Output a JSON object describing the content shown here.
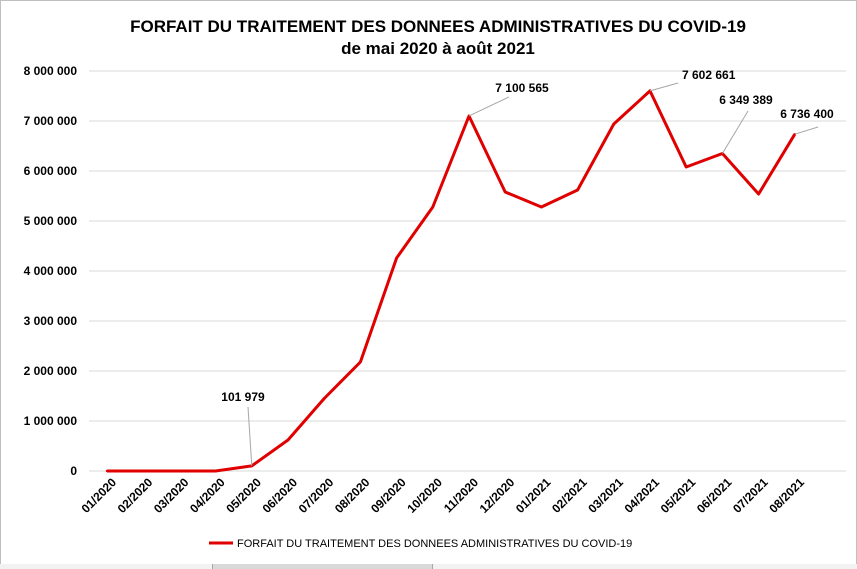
{
  "chart_data": {
    "type": "line",
    "title": "FORFAIT DU TRAITEMENT DES DONNEES ADMINISTRATIVES DU COVID-19",
    "subtitle": "de mai 2020 à août 2021",
    "categories": [
      "01/2020",
      "02/2020",
      "03/2020",
      "04/2020",
      "05/2020",
      "06/2020",
      "07/2020",
      "08/2020",
      "09/2020",
      "10/2020",
      "11/2020",
      "12/2020",
      "01/2021",
      "02/2021",
      "03/2021",
      "04/2021",
      "05/2021",
      "06/2021",
      "07/2021",
      "08/2021"
    ],
    "series": [
      {
        "name": "FORFAIT DU TRAITEMENT DES DONNEES ADMINISTRATIVES DU COVID-19",
        "color": "#e00000",
        "values": [
          0,
          0,
          0,
          0,
          101979,
          620000,
          1450000,
          2180000,
          4260000,
          5280000,
          7100565,
          5580000,
          5280000,
          5620000,
          6940000,
          7602661,
          6080000,
          6349389,
          5540000,
          6736400
        ]
      }
    ],
    "yticks": [
      "0",
      "1 000 000",
      "2 000 000",
      "3 000 000",
      "4 000 000",
      "5 000 000",
      "6 000 000",
      "7 000 000",
      "8 000 000"
    ],
    "ylim": [
      0,
      8000000
    ],
    "grid": true,
    "legend_position": "bottom",
    "annotations": [
      {
        "index": 4,
        "text": "101 979"
      },
      {
        "index": 10,
        "text": "7 100 565"
      },
      {
        "index": 15,
        "text": "7 602 661"
      },
      {
        "index": 17,
        "text": "6 349 389"
      },
      {
        "index": 19,
        "text": "6 736 400"
      }
    ]
  }
}
